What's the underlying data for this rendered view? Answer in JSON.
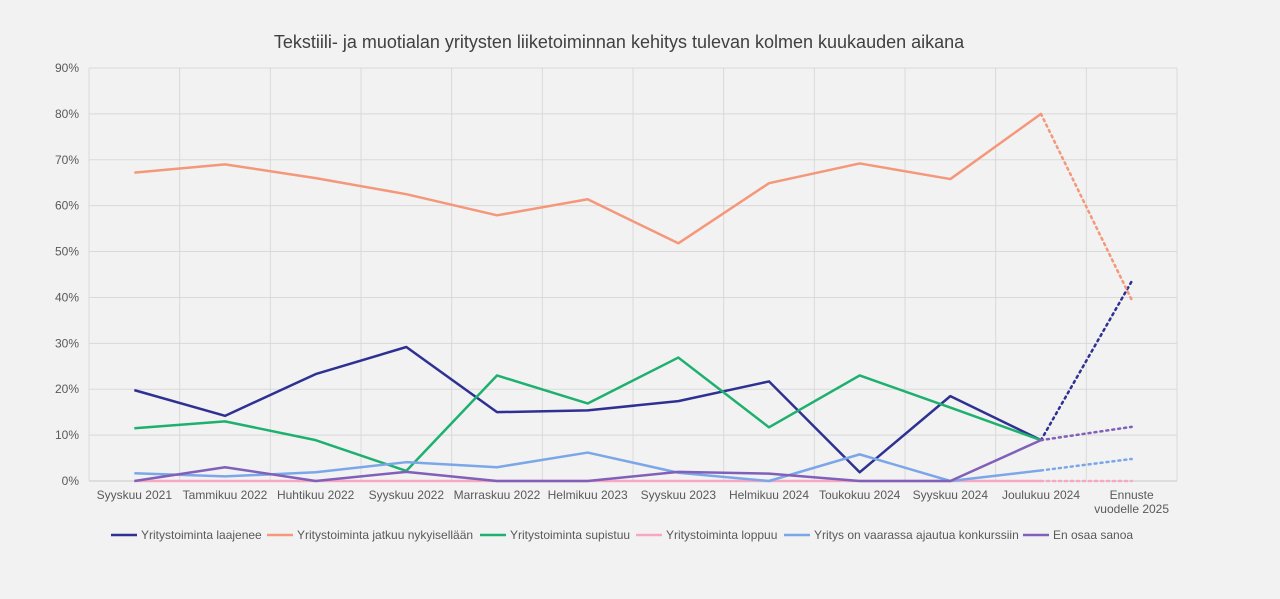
{
  "chart_data": {
    "type": "line",
    "title": "Tekstiili- ja muotialan yritysten liiketoiminnan kehitys tulevan kolmen kuukauden aikana",
    "categories": [
      "Syyskuu 2021",
      "Tammikuu 2022",
      "Huhtikuu 2022",
      "Syyskuu 2022",
      "Marraskuu 2022",
      "Helmikuu 2023",
      "Syyskuu 2023",
      "Helmikuu 2024",
      "Toukokuu 2024",
      "Syyskuu 2024",
      "Joulukuu 2024",
      "Ennuste vuodelle 2025"
    ],
    "forecast_category": "Ennuste vuodelle 2025",
    "ylim": [
      0,
      90
    ],
    "yticks": [
      "0%",
      "10%",
      "20%",
      "30%",
      "40%",
      "50%",
      "60%",
      "70%",
      "80%",
      "90%"
    ],
    "grid": true,
    "legend_position": "bottom",
    "series": [
      {
        "name": "Yritystoiminta laajenee",
        "color": "#2e3192",
        "values": [
          19.8,
          14.2,
          23.3,
          29.2,
          15.0,
          15.4,
          17.4,
          21.7,
          1.9,
          18.5,
          8.9,
          43.5
        ]
      },
      {
        "name": "Yritystoiminta jatkuu nykyisellään",
        "color": "#f4977a",
        "values": [
          67.2,
          69.0,
          66.0,
          62.5,
          57.9,
          61.4,
          51.8,
          64.9,
          69.2,
          65.8,
          80.0,
          39.5
        ]
      },
      {
        "name": "Yritystoiminta supistuu",
        "color": "#1eb06e",
        "values": [
          11.5,
          13.0,
          8.9,
          2.2,
          23.0,
          16.9,
          26.9,
          11.7,
          23.0,
          16.0,
          8.9,
          null
        ]
      },
      {
        "name": "Yritystoiminta loppuu",
        "color": "#f7a8c0",
        "values": [
          0,
          0,
          0,
          0,
          0,
          0,
          0,
          0,
          0,
          0,
          0,
          0
        ]
      },
      {
        "name": "Yritys on vaarassa ajautua konkurssiin",
        "color": "#7ba7e8",
        "values": [
          1.7,
          1.0,
          1.9,
          4.1,
          3.0,
          6.2,
          1.8,
          0,
          5.8,
          0,
          2.3,
          4.8
        ]
      },
      {
        "name": "En osaa sanoa",
        "color": "#8060b8",
        "values": [
          0,
          3.0,
          0,
          2.0,
          0,
          0,
          2.0,
          1.6,
          0,
          0,
          8.9,
          11.8
        ]
      }
    ]
  }
}
